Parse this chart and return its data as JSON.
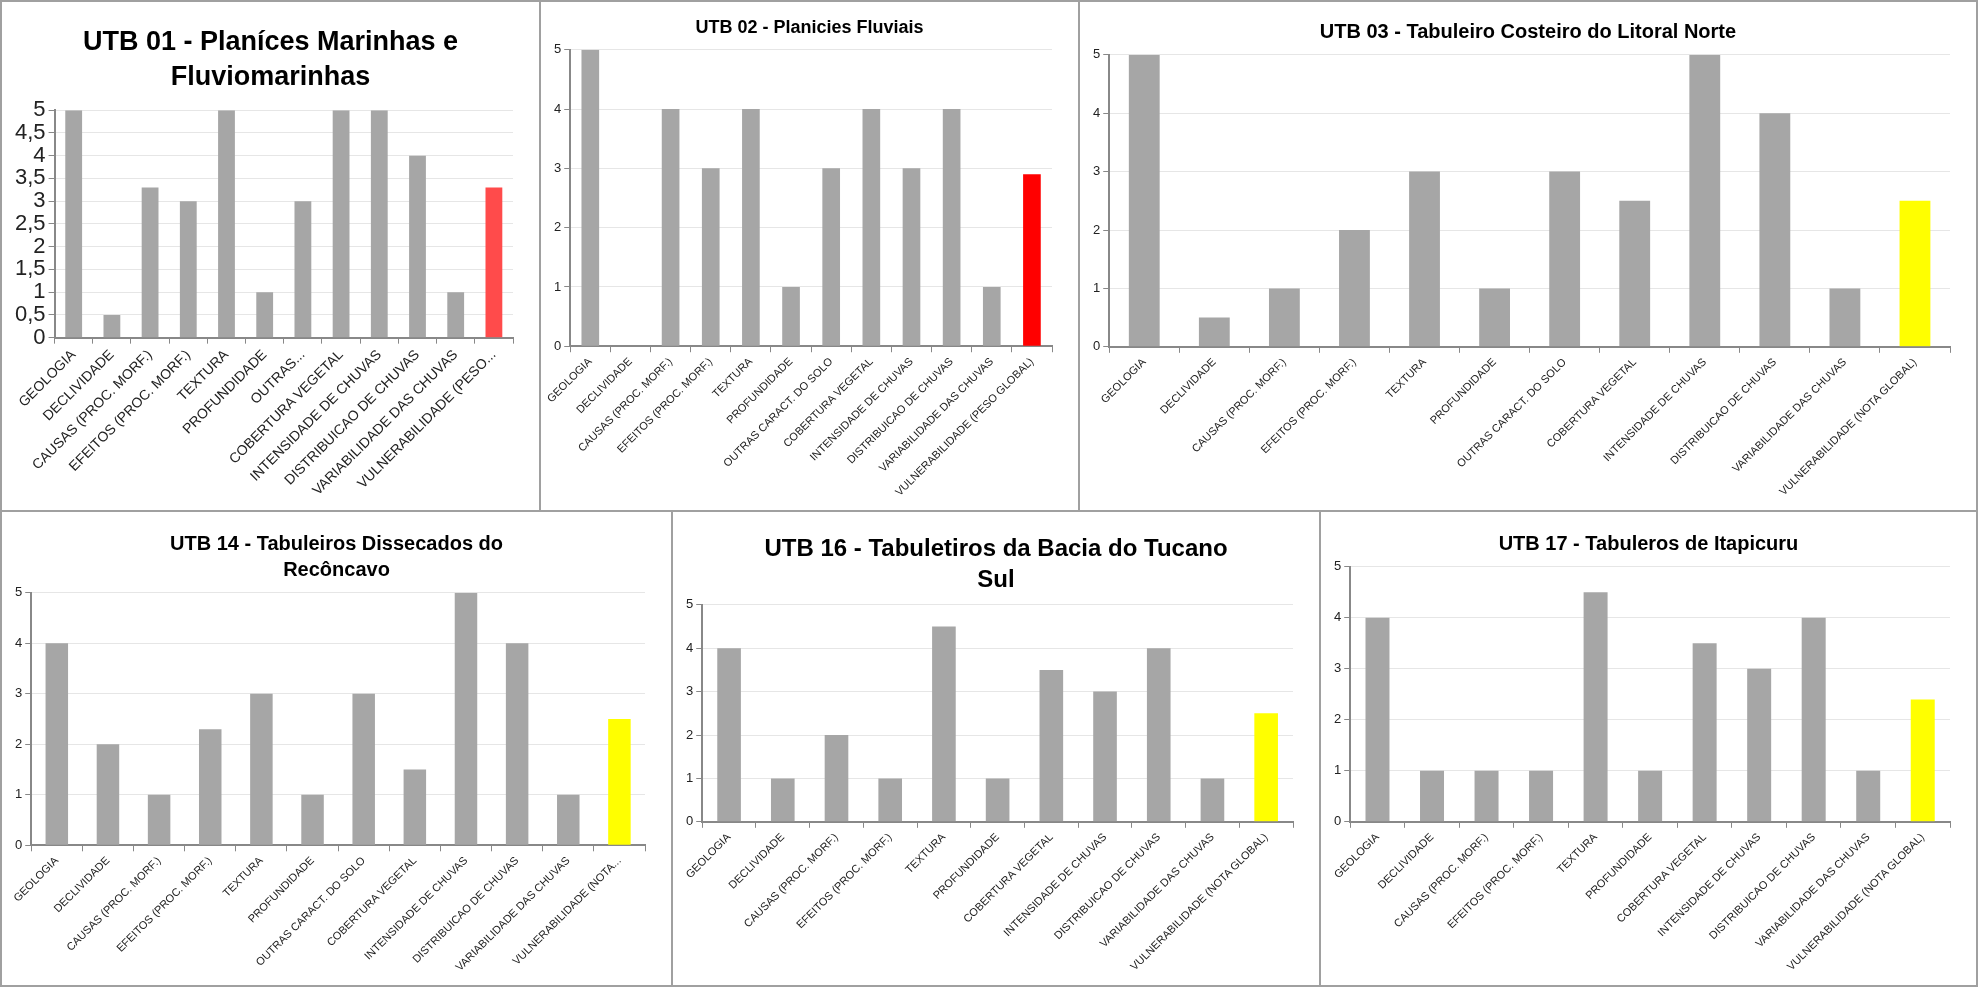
{
  "chart_data": [
    {
      "type": "bar",
      "title": "UTB 01 - Planíces Marinhas e Fluviomarinhas",
      "categories": [
        "GEOLOGIA",
        "DECLIVIDADE",
        "CAUSAS (PROC. MORF.)",
        "EFEITOS (PROC. MORF.)",
        "TEXTURA",
        "PROFUNDIDADE",
        "OUTRAS...",
        "COBERTURA VEGETAL",
        "INTENSIDADE DE CHUVAS",
        "DISTRIBUICAO DE CHUVAS",
        "VARIABILIDADE DAS CHUVAS",
        "VULNERABILIDADE (PESO..."
      ],
      "values": [
        5,
        0.5,
        3.3,
        3,
        5,
        1,
        3,
        5,
        5,
        4,
        1,
        3.3
      ],
      "colors": [
        "#a6a6a6",
        "#a6a6a6",
        "#a6a6a6",
        "#a6a6a6",
        "#a6a6a6",
        "#a6a6a6",
        "#a6a6a6",
        "#a6a6a6",
        "#a6a6a6",
        "#a6a6a6",
        "#a6a6a6",
        "#ff4b4b"
      ],
      "ylim": [
        0,
        5
      ],
      "yticks": [
        0,
        {
          "value": 0.5,
          "label": "0,5"
        },
        1,
        {
          "value": 1.5,
          "label": "1,5"
        },
        2,
        {
          "value": 2.5,
          "label": "2,5"
        },
        3,
        {
          "value": 3.5,
          "label": "3,5"
        },
        4,
        {
          "value": 4.5,
          "label": "4,5"
        },
        5
      ],
      "grid": "y"
    },
    {
      "type": "bar",
      "title": "UTB 02 - Planicies Fluviais",
      "categories": [
        "GEOLOGIA",
        "DECLIVIDADE",
        "CAUSAS (PROC. MORF.)",
        "EFEITOS (PROC. MORF.)",
        "TEXTURA",
        "PROFUNDIDADE",
        "OUTRAS CARACT. DO SOLO",
        "COBERTURA VEGETAL",
        "INTENSIDADE DE CHUVAS",
        "DISTRIBUICAO DE CHUVAS",
        "VARIABILIDADE DAS CHUVAS",
        "VULNERABILIDADE (PESO GLOBAL)"
      ],
      "values": [
        5,
        0,
        4,
        3,
        4,
        1,
        3,
        4,
        3,
        4,
        1,
        2.9
      ],
      "colors": [
        "#a6a6a6",
        "#a6a6a6",
        "#a6a6a6",
        "#a6a6a6",
        "#a6a6a6",
        "#a6a6a6",
        "#a6a6a6",
        "#a6a6a6",
        "#a6a6a6",
        "#a6a6a6",
        "#a6a6a6",
        "#ff0000"
      ],
      "ylim": [
        0,
        5
      ],
      "yticks": [
        0,
        1,
        2,
        3,
        4,
        5
      ],
      "grid": "y"
    },
    {
      "type": "bar",
      "title": "UTB 03 - Tabuleiro Costeiro do Litoral Norte",
      "categories": [
        "GEOLOGIA",
        "DECLIVIDADE",
        "CAUSAS (PROC. MORF.)",
        "EFEITOS (PROC. MORF.)",
        "TEXTURA",
        "PROFUNDIDADE",
        "OUTRAS CARACT. DO SOLO",
        "COBERTURA VEGETAL",
        "INTENSIDADE DE CHUVAS",
        "DISTRIBUICAO DE CHUVAS",
        "VARIABILIDADE DAS CHUVAS",
        "VULNERABILIDADE (NOTA GLOBAL)"
      ],
      "values": [
        5,
        0.5,
        1,
        2,
        3,
        1,
        3,
        2.5,
        5,
        4,
        1,
        2.5
      ],
      "colors": [
        "#a6a6a6",
        "#a6a6a6",
        "#a6a6a6",
        "#a6a6a6",
        "#a6a6a6",
        "#a6a6a6",
        "#a6a6a6",
        "#a6a6a6",
        "#a6a6a6",
        "#a6a6a6",
        "#a6a6a6",
        "#ffff00"
      ],
      "ylim": [
        0,
        5
      ],
      "yticks": [
        0,
        1,
        2,
        3,
        4,
        5
      ],
      "grid": "y"
    },
    {
      "type": "bar",
      "title": "UTB 14 - Tabuleiros Dissecados do Recôncavo",
      "categories": [
        "GEOLOGIA",
        "DECLIVIDADE",
        "CAUSAS (PROC. MORF.)",
        "EFEITOS (PROC. MORF.)",
        "TEXTURA",
        "PROFUNDIDADE",
        "OUTRAS CARACT. DO SOLO",
        "COBERTURA VEGETAL",
        "INTENSIDADE DE CHUVAS",
        "DISTRIBUICAO DE CHUVAS",
        "VARIABILIDADE DAS CHUVAS",
        "VULNERABILIDADE (NOTA..."
      ],
      "values": [
        4,
        2,
        1,
        2.3,
        3,
        1,
        3,
        1.5,
        5,
        4,
        1,
        2.5
      ],
      "colors": [
        "#a6a6a6",
        "#a6a6a6",
        "#a6a6a6",
        "#a6a6a6",
        "#a6a6a6",
        "#a6a6a6",
        "#a6a6a6",
        "#a6a6a6",
        "#a6a6a6",
        "#a6a6a6",
        "#a6a6a6",
        "#ffff00"
      ],
      "ylim": [
        0,
        5
      ],
      "yticks": [
        0,
        1,
        2,
        3,
        4,
        5
      ],
      "grid": "y"
    },
    {
      "type": "bar",
      "title": "UTB 16 - Tabuletiros da Bacia do Tucano Sul",
      "categories": [
        "GEOLOGIA",
        "DECLIVIDADE",
        "CAUSAS (PROC. MORF.)",
        "EFEITOS (PROC. MORF.)",
        "TEXTURA",
        "PROFUNDIDADE",
        "COBERTURA VEGETAL",
        "INTENSIDADE DE CHUVAS",
        "DISTRIBUICAO DE CHUVAS",
        "VARIABILIDADE DAS CHUVAS",
        "VULNERABILIDADE (NOTA GLOBAL)"
      ],
      "values": [
        4,
        1,
        2,
        1,
        4.5,
        1,
        3.5,
        3,
        4,
        1,
        2.5
      ],
      "colors": [
        "#a6a6a6",
        "#a6a6a6",
        "#a6a6a6",
        "#a6a6a6",
        "#a6a6a6",
        "#a6a6a6",
        "#a6a6a6",
        "#a6a6a6",
        "#a6a6a6",
        "#a6a6a6",
        "#ffff00"
      ],
      "ylim": [
        0,
        5
      ],
      "yticks": [
        0,
        1,
        2,
        3,
        4,
        5
      ],
      "grid": "y"
    },
    {
      "type": "bar",
      "title": "UTB 17 - Tabuleros de Itapicuru",
      "categories": [
        "GEOLOGIA",
        "DECLIVIDADE",
        "CAUSAS (PROC. MORF.)",
        "EFEITOS (PROC. MORF.)",
        "TEXTURA",
        "PROFUNDIDADE",
        "COBERTURA VEGETAL",
        "INTENSIDADE DE CHUVAS",
        "DISTRIBUICAO DE CHUVAS",
        "VARIABILIDADE DAS CHUVAS",
        "VULNERABILIDADE (NOTA GLOBAL)"
      ],
      "values": [
        4,
        1,
        1,
        1,
        4.5,
        1,
        3.5,
        3,
        4,
        1,
        2.4
      ],
      "colors": [
        "#a6a6a6",
        "#a6a6a6",
        "#a6a6a6",
        "#a6a6a6",
        "#a6a6a6",
        "#a6a6a6",
        "#a6a6a6",
        "#a6a6a6",
        "#a6a6a6",
        "#a6a6a6",
        "#ffff00"
      ],
      "ylim": [
        0,
        5
      ],
      "yticks": [
        0,
        1,
        2,
        3,
        4,
        5
      ],
      "grid": "y"
    }
  ]
}
